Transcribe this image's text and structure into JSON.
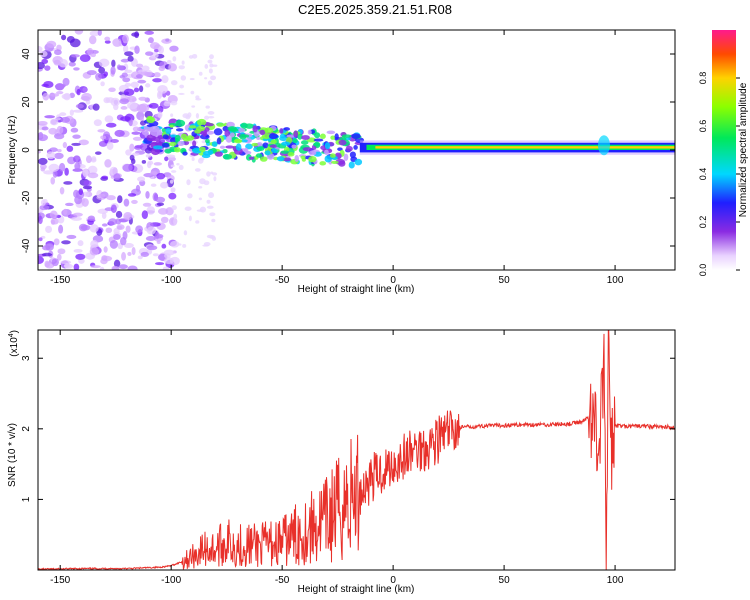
{
  "title": "C2E5.2025.359.21.51.R08",
  "colors": {
    "snr_line": "#e8302a",
    "axis": "#000000"
  },
  "chart_data": [
    {
      "type": "heatmap",
      "name": "spectrogram",
      "xlabel": "Height of straight line (km)",
      "ylabel": "Frequency (Hz)",
      "xlim": [
        -160,
        127
      ],
      "ylim": [
        -50,
        50
      ],
      "x_ticks": [
        -150,
        -100,
        -50,
        0,
        50,
        100
      ],
      "y_ticks": [
        -40,
        -20,
        0,
        20,
        40
      ],
      "colorbar": {
        "label": "Normalized spectral amplitude",
        "range": [
          0.0,
          1.0
        ],
        "ticks": [
          0.0,
          0.2,
          0.4,
          0.6,
          0.8
        ],
        "tick_labels": [
          "0.0",
          "0.2",
          "0.4",
          "0.6",
          "0.8"
        ]
      },
      "description_regions": [
        {
          "x_range": [
            -160,
            -100
          ],
          "freq_range": [
            -50,
            50
          ],
          "amplitude": "low, scattered"
        },
        {
          "x_range": [
            -110,
            -15
          ],
          "freq_range": [
            -10,
            15
          ],
          "amplitude": "medium, drifting band"
        },
        {
          "x_range": [
            -15,
            127
          ],
          "freq_center": 1,
          "amplitude": "high, narrow band"
        }
      ]
    },
    {
      "type": "line",
      "name": "snr",
      "xlabel": "Height of straight line (km)",
      "ylabel": "SNR (10 * v/v)",
      "y_multiplier_label": "(x10",
      "y_multiplier_exp": "4",
      "y_multiplier_close": ")",
      "xlim": [
        -160,
        127
      ],
      "ylim": [
        0,
        3.4
      ],
      "x_ticks": [
        -150,
        -100,
        -50,
        0,
        50,
        100
      ],
      "y_ticks": [
        1,
        2,
        3
      ],
      "series": [
        {
          "name": "SNR",
          "x": [
            -160,
            -140,
            -120,
            -105,
            -100,
            -95,
            -90,
            -85,
            -80,
            -75,
            -70,
            -60,
            -50,
            -40,
            -30,
            -25,
            -20,
            -15,
            -10,
            -5,
            0,
            5,
            10,
            15,
            20,
            25,
            30,
            40,
            50,
            60,
            70,
            80,
            85,
            90,
            93,
            95,
            96,
            97,
            98,
            100,
            105,
            110,
            120,
            127
          ],
          "y": [
            0.01,
            0.02,
            0.02,
            0.04,
            0.06,
            0.12,
            0.2,
            0.3,
            0.3,
            0.4,
            0.35,
            0.35,
            0.4,
            0.55,
            0.7,
            0.85,
            1.0,
            1.1,
            1.3,
            1.4,
            1.5,
            1.6,
            1.7,
            1.75,
            1.85,
            1.95,
            2.02,
            2.04,
            2.05,
            2.06,
            2.06,
            2.07,
            2.1,
            2.2,
            1.8,
            2.9,
            0.2,
            3.1,
            1.6,
            2.05,
            2.03,
            2.04,
            2.03,
            2.02
          ]
        }
      ]
    }
  ]
}
